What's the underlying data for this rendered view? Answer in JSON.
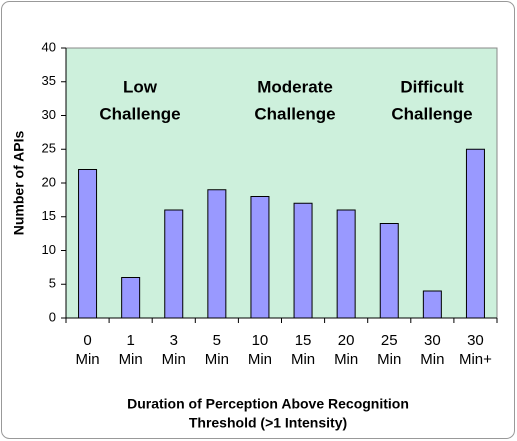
{
  "chart_data": {
    "type": "bar",
    "categories": [
      [
        "0",
        "Min"
      ],
      [
        "1",
        "Min"
      ],
      [
        "3",
        "Min"
      ],
      [
        "5",
        "Min"
      ],
      [
        "10",
        "Min"
      ],
      [
        "15",
        "Min"
      ],
      [
        "20",
        "Min"
      ],
      [
        "25",
        "Min"
      ],
      [
        "30",
        "Min"
      ],
      [
        "30",
        "Min+"
      ]
    ],
    "values": [
      22,
      6,
      16,
      19,
      18,
      17,
      16,
      14,
      4,
      25
    ],
    "color": "#9999ff",
    "background": "#cdf0dc",
    "ylim": [
      0,
      40
    ],
    "yticks": [
      0,
      5,
      10,
      15,
      20,
      25,
      30,
      35,
      40
    ],
    "grid": false,
    "y_label": "Number of APIs",
    "x_label": [
      "Duration of Perception Above Recognition",
      "Threshold (>1 Intensity)"
    ],
    "annotations": [
      [
        "Low",
        "Challenge"
      ],
      [
        "Moderate",
        "Challenge"
      ],
      [
        "Difficult",
        "Challenge"
      ]
    ]
  }
}
